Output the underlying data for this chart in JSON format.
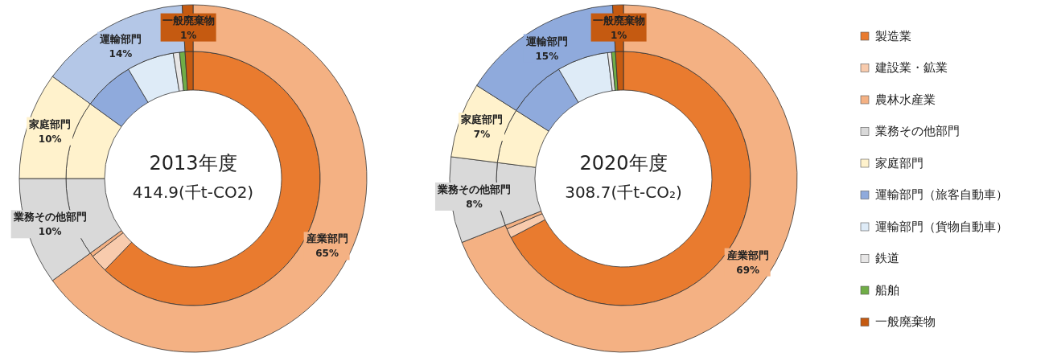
{
  "chart_data": [
    {
      "type": "donut",
      "categories": [
        "産業部門",
        "業務その他部門",
        "家庭部門",
        "運輸部門",
        "一般廃棄物"
      ],
      "values": [
        65,
        10,
        10,
        14,
        1
      ],
      "colors": [
        "#f4b183",
        "#d9d9d9",
        "#fff2cc",
        "#b4c7e7",
        "#c55a11"
      ],
      "value_labels": [
        "65%",
        "10%",
        "10%",
        "14%",
        "1%"
      ]
    },
    {
      "type": "donut",
      "title": "2013年度",
      "annotations": [
        "414.9(千t-CO2)"
      ],
      "categories": [
        null,
        null,
        null,
        null,
        null,
        null,
        null,
        null,
        null,
        null
      ],
      "values": [
        62.2,
        2.3,
        0.5,
        10,
        10,
        6.5,
        6.0,
        0.8,
        0.7,
        1.0
      ],
      "colors": [
        "#e97b2f",
        "#f8cbad",
        "#f4b183",
        "#d9d9d9",
        "#fff2cc",
        "#8faadc",
        "#deebf7",
        "#e7e6e6",
        "#70ad47",
        "#c55a11"
      ]
    },
    {
      "type": "donut",
      "categories": [
        "産業部門",
        "業務その他部門",
        "家庭部門",
        "運輸部門",
        "一般廃棄物"
      ],
      "values": [
        69,
        8,
        7,
        15,
        1
      ],
      "colors": [
        "#f4b183",
        "#d9d9d9",
        "#fff2cc",
        "#8faadc",
        "#c55a11"
      ],
      "value_labels": [
        "69%",
        "8%",
        "7%",
        "15%",
        "1%"
      ]
    },
    {
      "type": "donut",
      "title": "2020年度",
      "annotations": [
        "308.7(千t-CO₂)"
      ],
      "legend": "right",
      "categories": [
        "製造業",
        "建設業・鉱業",
        "農林水産業",
        "業務その他部門",
        "家庭部門",
        "運輸部門（旅客自動車）",
        "運輸部門（貨物自動車）",
        "鉄道",
        "船舶",
        "一般廃棄物"
      ],
      "values": [
        67.3,
        1.2,
        0.5,
        8,
        7,
        7.5,
        6.5,
        0.5,
        0.5,
        1.0
      ],
      "colors": [
        "#e97b2f",
        "#f8cbad",
        "#f4b183",
        "#d9d9d9",
        "#fff2cc",
        "#8faadc",
        "#deebf7",
        "#e7e6e6",
        "#70ad47",
        "#c55a11"
      ]
    }
  ]
}
